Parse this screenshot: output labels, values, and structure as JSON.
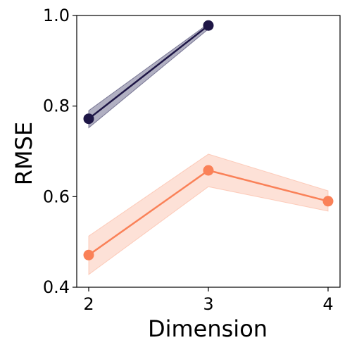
{
  "chart_data": {
    "type": "line",
    "title": "",
    "xlabel": "Dimension",
    "ylabel": "RMSE",
    "xlim": [
      1.9,
      4.1
    ],
    "ylim": [
      0.4,
      1.0
    ],
    "xticks": [
      2,
      3,
      4
    ],
    "yticks": [
      0.4,
      0.6,
      0.8,
      1.0
    ],
    "xtick_labels": [
      "2",
      "3",
      "4"
    ],
    "ytick_labels": [
      "0.4",
      "0.6",
      "0.8",
      "1.0"
    ],
    "grid": false,
    "series": [
      {
        "color": "#1e1646",
        "band_color": "#3d3a66",
        "x": [
          2,
          3
        ],
        "y": [
          0.772,
          0.978
        ],
        "lower": [
          0.752,
          0.97
        ],
        "upper": [
          0.79,
          0.982
        ]
      },
      {
        "color": "#fa8158",
        "band_color": "#fbb49b",
        "x": [
          2,
          3,
          4
        ],
        "y": [
          0.471,
          0.658,
          0.59
        ],
        "lower": [
          0.428,
          0.622,
          0.568
        ],
        "upper": [
          0.513,
          0.694,
          0.613
        ]
      }
    ]
  }
}
